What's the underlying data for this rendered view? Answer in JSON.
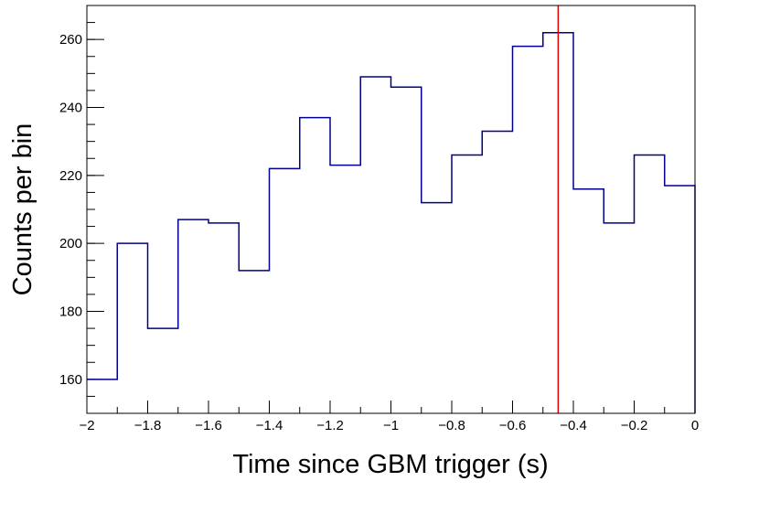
{
  "chart_data": {
    "type": "histogram",
    "xlabel": "Time since GBM trigger (s)",
    "ylabel": "Counts per bin",
    "xlim": [
      -2,
      0
    ],
    "ylim": [
      150,
      270
    ],
    "bin_width": 0.1,
    "bin_edges": [
      -2.0,
      -1.9,
      -1.8,
      -1.7,
      -1.6,
      -1.5,
      -1.4,
      -1.3,
      -1.2,
      -1.1,
      -1.0,
      -0.9,
      -0.8,
      -0.7,
      -0.6,
      -0.5,
      -0.4,
      -0.3,
      -0.2,
      -0.1,
      0.0
    ],
    "counts": [
      160,
      200,
      175,
      207,
      206,
      192,
      222,
      237,
      223,
      249,
      246,
      212,
      226,
      233,
      258,
      262,
      216,
      206,
      226,
      217
    ],
    "series_color": "#00008b",
    "marker": {
      "x": -0.45,
      "color": "#e00000"
    },
    "x_ticks": [
      {
        "value": -2.0,
        "label": "−2"
      },
      {
        "value": -1.8,
        "label": "−1.8"
      },
      {
        "value": -1.6,
        "label": "−1.6"
      },
      {
        "value": -1.4,
        "label": "−1.4"
      },
      {
        "value": -1.2,
        "label": "−1.2"
      },
      {
        "value": -1.0,
        "label": "−1"
      },
      {
        "value": -0.8,
        "label": "−0.8"
      },
      {
        "value": -0.6,
        "label": "−0.6"
      },
      {
        "value": -0.4,
        "label": "−0.4"
      },
      {
        "value": -0.2,
        "label": "−0.2"
      },
      {
        "value": 0.0,
        "label": "0"
      }
    ],
    "y_ticks": [
      {
        "value": 160,
        "label": "160"
      },
      {
        "value": 180,
        "label": "180"
      },
      {
        "value": 200,
        "label": "200"
      },
      {
        "value": 220,
        "label": "220"
      },
      {
        "value": 240,
        "label": "240"
      },
      {
        "value": 260,
        "label": "260"
      }
    ],
    "x_minor_step": 0.1,
    "y_minor_step": 5,
    "grid": false,
    "legend": "none"
  }
}
